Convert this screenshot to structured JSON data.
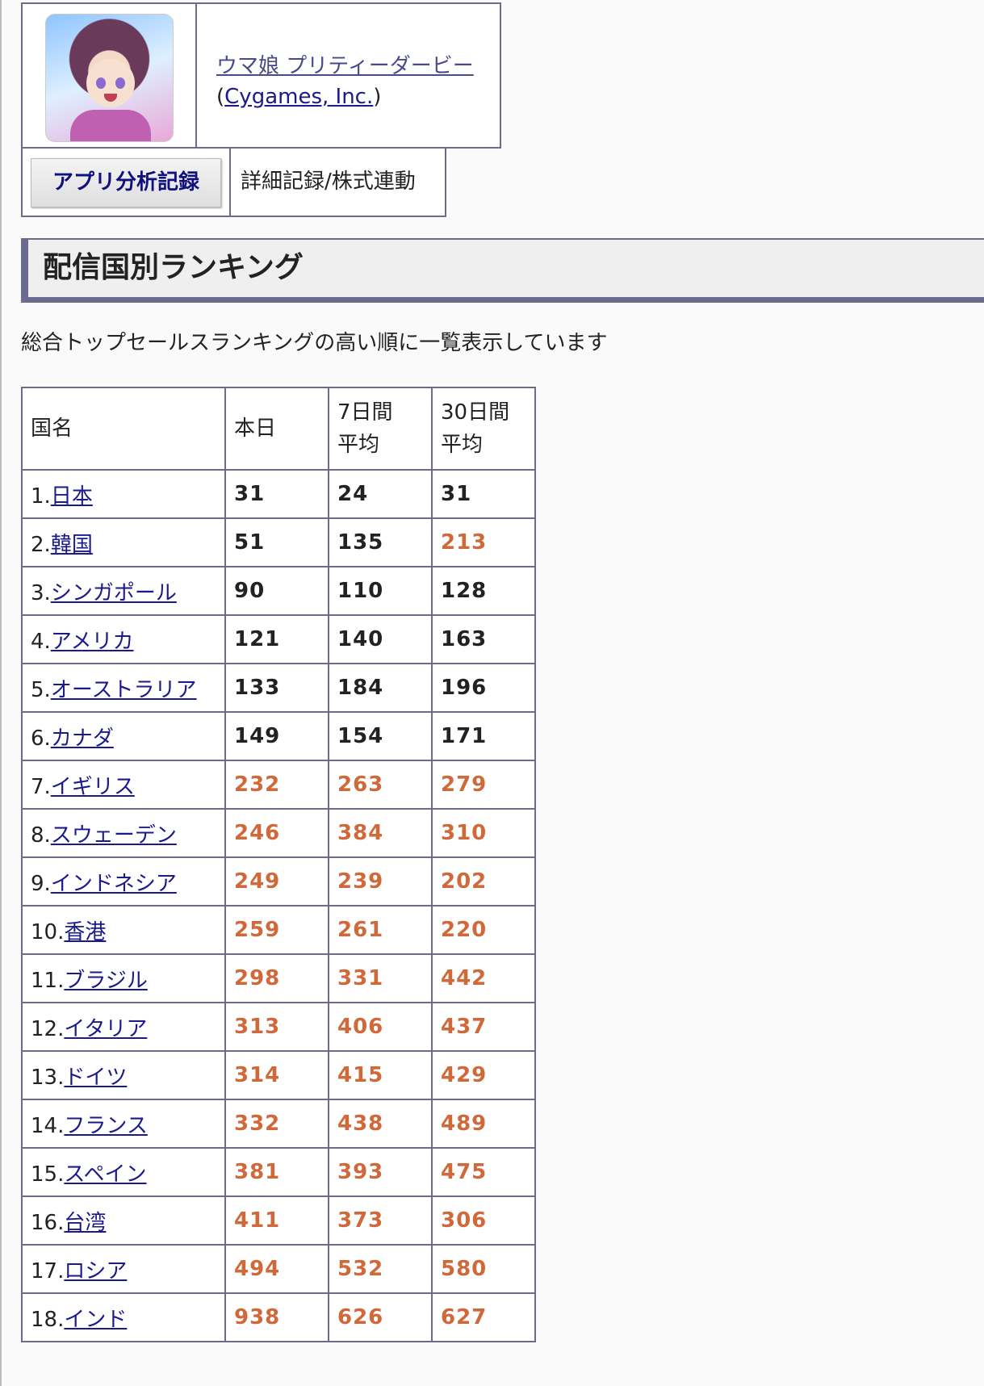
{
  "app": {
    "title": "ウマ娘 プリティーダービー",
    "developer": "Cygames, Inc.",
    "icon": "app-icon-character"
  },
  "tabs": [
    {
      "label": "アプリ分析記録",
      "active": true
    },
    {
      "label": "詳細記録/株式連動",
      "active": false
    }
  ],
  "section": {
    "heading": "配信国別ランキング",
    "description": "総合トップセールスランキングの高い順に一覧表示しています"
  },
  "colors": {
    "accent": "#6b6b8f",
    "highlight": "#d0693a",
    "link": "#1a1a8c"
  },
  "table": {
    "headers": [
      "国名",
      "本日",
      "7日間\n平均",
      "30日間\n平均"
    ],
    "rows": [
      {
        "rank": "1.",
        "country": "日本",
        "today": "31",
        "avg7": "24",
        "avg30": "31"
      },
      {
        "rank": "2.",
        "country": "韓国",
        "today": "51",
        "avg7": "135",
        "avg30": "213"
      },
      {
        "rank": "3.",
        "country": "シンガポール",
        "today": "90",
        "avg7": "110",
        "avg30": "128"
      },
      {
        "rank": "4.",
        "country": "アメリカ",
        "today": "121",
        "avg7": "140",
        "avg30": "163"
      },
      {
        "rank": "5.",
        "country": "オーストラリア",
        "today": "133",
        "avg7": "184",
        "avg30": "196"
      },
      {
        "rank": "6.",
        "country": "カナダ",
        "today": "149",
        "avg7": "154",
        "avg30": "171"
      },
      {
        "rank": "7.",
        "country": "イギリス",
        "today": "232",
        "avg7": "263",
        "avg30": "279"
      },
      {
        "rank": "8.",
        "country": "スウェーデン",
        "today": "246",
        "avg7": "384",
        "avg30": "310"
      },
      {
        "rank": "9.",
        "country": "インドネシア",
        "today": "249",
        "avg7": "239",
        "avg30": "202"
      },
      {
        "rank": "10.",
        "country": "香港",
        "today": "259",
        "avg7": "261",
        "avg30": "220"
      },
      {
        "rank": "11.",
        "country": "ブラジル",
        "today": "298",
        "avg7": "331",
        "avg30": "442"
      },
      {
        "rank": "12.",
        "country": "イタリア",
        "today": "313",
        "avg7": "406",
        "avg30": "437"
      },
      {
        "rank": "13.",
        "country": "ドイツ",
        "today": "314",
        "avg7": "415",
        "avg30": "429"
      },
      {
        "rank": "14.",
        "country": "フランス",
        "today": "332",
        "avg7": "438",
        "avg30": "489"
      },
      {
        "rank": "15.",
        "country": "スペイン",
        "today": "381",
        "avg7": "393",
        "avg30": "475"
      },
      {
        "rank": "16.",
        "country": "台湾",
        "today": "411",
        "avg7": "373",
        "avg30": "306"
      },
      {
        "rank": "17.",
        "country": "ロシア",
        "today": "494",
        "avg7": "532",
        "avg30": "580"
      },
      {
        "rank": "18.",
        "country": "インド",
        "today": "938",
        "avg7": "626",
        "avg30": "627"
      }
    ]
  }
}
